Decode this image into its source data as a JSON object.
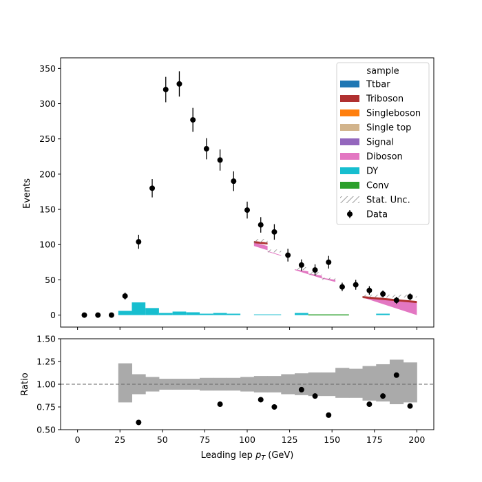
{
  "chart_data": [
    {
      "type": "bar",
      "stacked": true,
      "ylabel": "Events",
      "xlim": [
        -10,
        210
      ],
      "ylim": [
        -17,
        365
      ],
      "xticks": [
        0,
        25,
        50,
        75,
        100,
        125,
        150,
        175,
        200
      ],
      "yticks": [
        0,
        50,
        100,
        150,
        200,
        250,
        300,
        350
      ],
      "legend": {
        "title": "sample",
        "placement": "top-right",
        "entries": [
          {
            "label": "Ttbar",
            "color": "#1f77b4",
            "kind": "patch"
          },
          {
            "label": "Triboson",
            "color": "#b03030",
            "kind": "patch"
          },
          {
            "label": "Singleboson",
            "color": "#ff7f0e",
            "kind": "patch"
          },
          {
            "label": "Single top",
            "color": "#d2b48c",
            "kind": "patch"
          },
          {
            "label": "Signal",
            "color": "#9467bd",
            "kind": "patch"
          },
          {
            "label": "Diboson",
            "color": "#e377c2",
            "kind": "patch"
          },
          {
            "label": "DY",
            "color": "#17becf",
            "kind": "patch"
          },
          {
            "label": "Conv",
            "color": "#2ca02c",
            "kind": "patch"
          },
          {
            "label": "Stat. Unc.",
            "color": "#888888",
            "kind": "hatch"
          },
          {
            "label": "Data",
            "color": "#000000",
            "kind": "marker"
          }
        ]
      },
      "dy_bins": [
        {
          "x0": 24,
          "x1": 32,
          "y": 6
        },
        {
          "x0": 32,
          "x1": 40,
          "y": 18
        },
        {
          "x0": 40,
          "x1": 48,
          "y": 10
        },
        {
          "x0": 48,
          "x1": 56,
          "y": 3
        },
        {
          "x0": 56,
          "x1": 64,
          "y": 5
        },
        {
          "x0": 64,
          "x1": 72,
          "y": 4
        },
        {
          "x0": 72,
          "x1": 80,
          "y": 2
        },
        {
          "x0": 80,
          "x1": 88,
          "y": 3
        },
        {
          "x0": 88,
          "x1": 96,
          "y": 2
        },
        {
          "x0": 104,
          "x1": 120,
          "y": 1
        },
        {
          "x0": 128,
          "x1": 136,
          "y": 3
        },
        {
          "x0": 176,
          "x1": 184,
          "y": 2
        }
      ],
      "conv_bins": [
        {
          "x0": 136,
          "x1": 160,
          "y": 1
        }
      ],
      "diboson_wedges": [
        {
          "x0": 104,
          "x1": 112,
          "top0": 103,
          "top1": 98,
          "bot0": 98,
          "bot1": 92
        },
        {
          "x0": 112,
          "x1": 120,
          "top0": 91,
          "top1": 85,
          "bot0": 90,
          "bot1": 84
        },
        {
          "x0": 128,
          "x1": 136,
          "top0": 65,
          "top1": 62,
          "bot0": 64,
          "bot1": 58
        },
        {
          "x0": 136,
          "x1": 144,
          "top0": 59,
          "top1": 56,
          "bot0": 58,
          "bot1": 52
        },
        {
          "x0": 144,
          "x1": 152,
          "top0": 53,
          "top1": 50,
          "bot0": 52,
          "bot1": 47
        },
        {
          "x0": 168,
          "x1": 200,
          "top0": 26,
          "top1": 18,
          "bot0": 25,
          "bot1": 0
        }
      ],
      "triboson_caps": [
        {
          "x0": 104,
          "x1": 112,
          "y0": 105,
          "y1": 103
        },
        {
          "x0": 168,
          "x1": 200,
          "y0": 27,
          "y1": 20
        }
      ],
      "stat_unc": [
        {
          "x0": 104,
          "x1": 112,
          "lo": 102,
          "hi": 108
        },
        {
          "x0": 112,
          "x1": 120,
          "lo": 89,
          "hi": 93
        },
        {
          "x0": 128,
          "x1": 136,
          "lo": 64,
          "hi": 68
        },
        {
          "x0": 136,
          "x1": 144,
          "lo": 57,
          "hi": 61
        },
        {
          "x0": 144,
          "x1": 152,
          "lo": 50,
          "hi": 53
        },
        {
          "x0": 168,
          "x1": 200,
          "lo": 25,
          "hi": 29
        }
      ],
      "data_points": [
        {
          "x": 4,
          "y": 0,
          "err": 0
        },
        {
          "x": 12,
          "y": 0,
          "err": 0
        },
        {
          "x": 20,
          "y": 0,
          "err": 0
        },
        {
          "x": 28,
          "y": 27,
          "err": 5
        },
        {
          "x": 36,
          "y": 104,
          "err": 10
        },
        {
          "x": 44,
          "y": 180,
          "err": 13
        },
        {
          "x": 52,
          "y": 320,
          "err": 18
        },
        {
          "x": 60,
          "y": 328,
          "err": 18
        },
        {
          "x": 68,
          "y": 277,
          "err": 17
        },
        {
          "x": 76,
          "y": 236,
          "err": 15
        },
        {
          "x": 84,
          "y": 220,
          "err": 15
        },
        {
          "x": 92,
          "y": 190,
          "err": 14
        },
        {
          "x": 100,
          "y": 149,
          "err": 12
        },
        {
          "x": 108,
          "y": 128,
          "err": 11
        },
        {
          "x": 116,
          "y": 118,
          "err": 11
        },
        {
          "x": 124,
          "y": 85,
          "err": 9
        },
        {
          "x": 132,
          "y": 71,
          "err": 8
        },
        {
          "x": 140,
          "y": 64,
          "err": 8
        },
        {
          "x": 148,
          "y": 75,
          "err": 9
        },
        {
          "x": 156,
          "y": 40,
          "err": 6
        },
        {
          "x": 164,
          "y": 43,
          "err": 7
        },
        {
          "x": 172,
          "y": 35,
          "err": 6
        },
        {
          "x": 180,
          "y": 30,
          "err": 5
        },
        {
          "x": 188,
          "y": 21,
          "err": 5
        },
        {
          "x": 196,
          "y": 26,
          "err": 5
        }
      ]
    },
    {
      "type": "bar",
      "xlabel": "Leading lep $p_T$ (GeV)",
      "ylabel": "Ratio",
      "xlim": [
        -10,
        210
      ],
      "ylim": [
        0.5,
        1.5
      ],
      "xticks": [
        0,
        25,
        50,
        75,
        100,
        125,
        150,
        175,
        200
      ],
      "yticks": [
        "0.50",
        "0.75",
        "1.00",
        "1.25",
        "1.50"
      ],
      "reference_line": 1.0,
      "unc_band": [
        {
          "x0": 24,
          "x1": 32,
          "lo": 0.8,
          "hi": 1.23
        },
        {
          "x0": 32,
          "x1": 40,
          "lo": 0.89,
          "hi": 1.11
        },
        {
          "x0": 40,
          "x1": 48,
          "lo": 0.92,
          "hi": 1.08
        },
        {
          "x0": 48,
          "x1": 56,
          "lo": 0.94,
          "hi": 1.06
        },
        {
          "x0": 56,
          "x1": 64,
          "lo": 0.94,
          "hi": 1.06
        },
        {
          "x0": 64,
          "x1": 72,
          "lo": 0.94,
          "hi": 1.06
        },
        {
          "x0": 72,
          "x1": 80,
          "lo": 0.93,
          "hi": 1.07
        },
        {
          "x0": 80,
          "x1": 88,
          "lo": 0.93,
          "hi": 1.07
        },
        {
          "x0": 88,
          "x1": 96,
          "lo": 0.93,
          "hi": 1.07
        },
        {
          "x0": 96,
          "x1": 104,
          "lo": 0.92,
          "hi": 1.08
        },
        {
          "x0": 104,
          "x1": 112,
          "lo": 0.91,
          "hi": 1.09
        },
        {
          "x0": 112,
          "x1": 120,
          "lo": 0.91,
          "hi": 1.09
        },
        {
          "x0": 120,
          "x1": 128,
          "lo": 0.89,
          "hi": 1.11
        },
        {
          "x0": 128,
          "x1": 136,
          "lo": 0.88,
          "hi": 1.12
        },
        {
          "x0": 136,
          "x1": 144,
          "lo": 0.87,
          "hi": 1.13
        },
        {
          "x0": 144,
          "x1": 152,
          "lo": 0.87,
          "hi": 1.13
        },
        {
          "x0": 152,
          "x1": 160,
          "lo": 0.85,
          "hi": 1.18
        },
        {
          "x0": 160,
          "x1": 168,
          "lo": 0.85,
          "hi": 1.17
        },
        {
          "x0": 168,
          "x1": 176,
          "lo": 0.82,
          "hi": 1.2
        },
        {
          "x0": 176,
          "x1": 184,
          "lo": 0.81,
          "hi": 1.22
        },
        {
          "x0": 184,
          "x1": 192,
          "lo": 0.78,
          "hi": 1.27
        },
        {
          "x0": 192,
          "x1": 200,
          "lo": 0.8,
          "hi": 1.24
        }
      ],
      "ratio_points": [
        {
          "x": 36,
          "y": 0.58
        },
        {
          "x": 84,
          "y": 0.78
        },
        {
          "x": 108,
          "y": 0.83
        },
        {
          "x": 116,
          "y": 0.75
        },
        {
          "x": 132,
          "y": 0.94
        },
        {
          "x": 140,
          "y": 0.87
        },
        {
          "x": 148,
          "y": 0.66
        },
        {
          "x": 172,
          "y": 0.78
        },
        {
          "x": 180,
          "y": 0.87
        },
        {
          "x": 188,
          "y": 1.1
        },
        {
          "x": 196,
          "y": 0.76
        }
      ]
    }
  ]
}
